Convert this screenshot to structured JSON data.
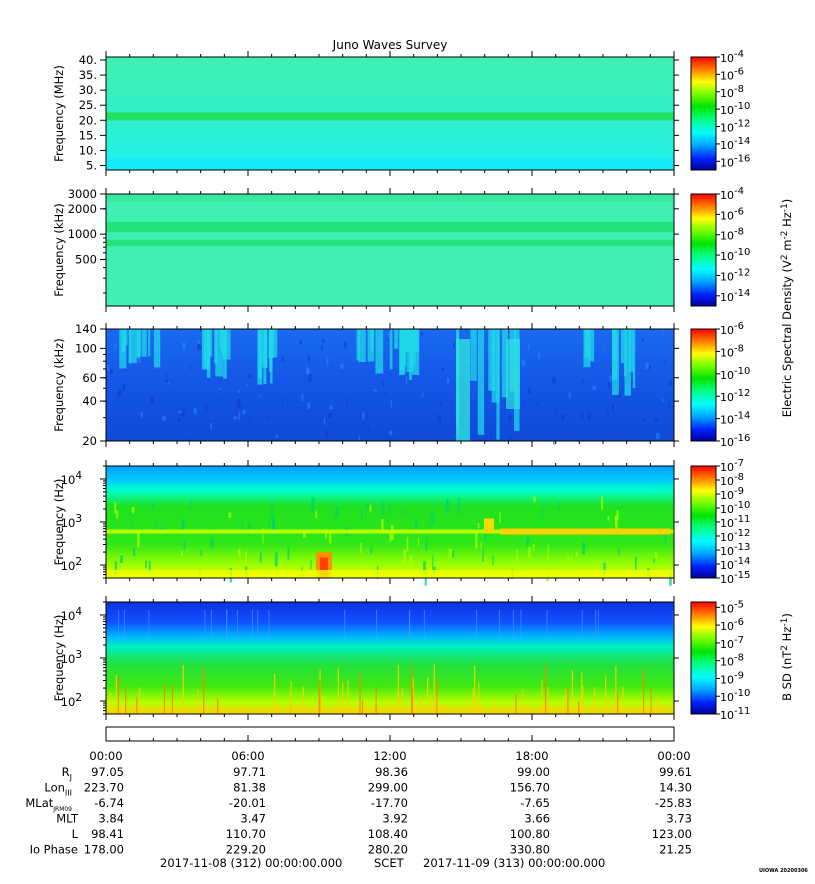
{
  "title": "Juno Waves Survey",
  "chart_data": {
    "type": "heatmap",
    "panels": [
      {
        "ylabel": "Frequency (MHz)",
        "scale": "linear",
        "ylim": [
          3.5,
          41
        ],
        "ticks": [
          5,
          10,
          15,
          20,
          25,
          30,
          35,
          40
        ],
        "tick_labels": [
          "5.",
          "10.",
          "15.",
          "20.",
          "25.",
          "30.",
          "35.",
          "40."
        ],
        "colorbar_exponents": [
          "-4",
          "-6",
          "-8",
          "-10",
          "-12",
          "-14",
          "-16"
        ],
        "colorbar_range": [
          -17,
          -4
        ]
      },
      {
        "ylabel": "Frequency (kHz)",
        "scale": "log",
        "ylim": [
          140,
          3000
        ],
        "ticks": [
          500,
          1000,
          2000,
          3000
        ],
        "tick_labels": [
          "500",
          "1000",
          "2000",
          "3000"
        ],
        "colorbar_exponents": [
          "-4",
          "-6",
          "-8",
          "-10",
          "-12",
          "-14"
        ],
        "colorbar_range": [
          -15,
          -4
        ]
      },
      {
        "ylabel": "Frequency (kHz)",
        "scale": "log",
        "ylim": [
          20,
          140
        ],
        "ticks": [
          20,
          40,
          60,
          100,
          140
        ],
        "tick_labels": [
          "20",
          "40",
          "60",
          "100",
          "140"
        ],
        "colorbar_exponents": [
          "-6",
          "-8",
          "-10",
          "-12",
          "-14",
          "-16"
        ],
        "colorbar_range": [
          -16,
          -6
        ]
      },
      {
        "ylabel": "Frequency (Hz)",
        "scale": "log",
        "ylim": [
          50,
          20000
        ],
        "ticks": [
          100,
          1000,
          10000
        ],
        "tick_labels_base": "10",
        "tick_labels_exp": [
          "2",
          "3",
          "4"
        ],
        "colorbar_exponents": [
          "-7",
          "-8",
          "-9",
          "-10",
          "-11",
          "-12",
          "-13",
          "-14",
          "-15"
        ],
        "colorbar_range": [
          -15,
          -7
        ]
      },
      {
        "ylabel": "Frequency (Hz)",
        "scale": "log",
        "ylim": [
          50,
          20000
        ],
        "ticks": [
          100,
          1000,
          10000
        ],
        "tick_labels_base": "10",
        "tick_labels_exp": [
          "2",
          "3",
          "4"
        ],
        "colorbar_exponents": [
          "-5",
          "-6",
          "-7",
          "-8",
          "-9",
          "-10",
          "-11"
        ],
        "colorbar_range": [
          -11,
          -4.7
        ]
      }
    ],
    "colorbar_labels": {
      "electric": "Electric Spectral Density (V",
      "electric_unit": " m",
      "electric_unit2": " Hz",
      "electric_end": ")",
      "magnetic": "B SD (nT",
      "magnetic_unit": " Hz",
      "magnetic_end": ")",
      "sq": "2",
      "neg2": "-2",
      "neg1": "-1",
      "base": "10"
    },
    "x_times": [
      "00:00",
      "06:00",
      "12:00",
      "18:00",
      "00:00"
    ],
    "ephemeris": {
      "rows": [
        {
          "label": "R",
          "sub": "J",
          "values": [
            "97.05",
            "97.71",
            "98.36",
            "99.00",
            "99.61"
          ]
        },
        {
          "label": "Lon",
          "sub": "III",
          "values": [
            "223.70",
            "81.38",
            "299.00",
            "156.70",
            "14.30"
          ]
        },
        {
          "label": "MLat",
          "sub": "JRM09",
          "values": [
            "-6.74",
            "-20.01",
            "-17.70",
            "-7.65",
            "-25.83"
          ]
        },
        {
          "label": "MLT",
          "sub": "",
          "values": [
            "3.84",
            "3.47",
            "3.92",
            "3.66",
            "3.73"
          ]
        },
        {
          "label": "L",
          "sub": "",
          "values": [
            "98.41",
            "110.70",
            "108.40",
            "100.80",
            "123.00"
          ]
        },
        {
          "label": "Io Phase",
          "sub": "",
          "values": [
            "178.00",
            "229.20",
            "280.20",
            "330.80",
            "21.25"
          ]
        }
      ]
    },
    "footer": {
      "start": "2017-11-08 (312) 00:00:00.000",
      "scet": "SCET",
      "end": "2017-11-09 (313) 00:00:00.000",
      "stamp": "UIOWA 20200306"
    }
  }
}
